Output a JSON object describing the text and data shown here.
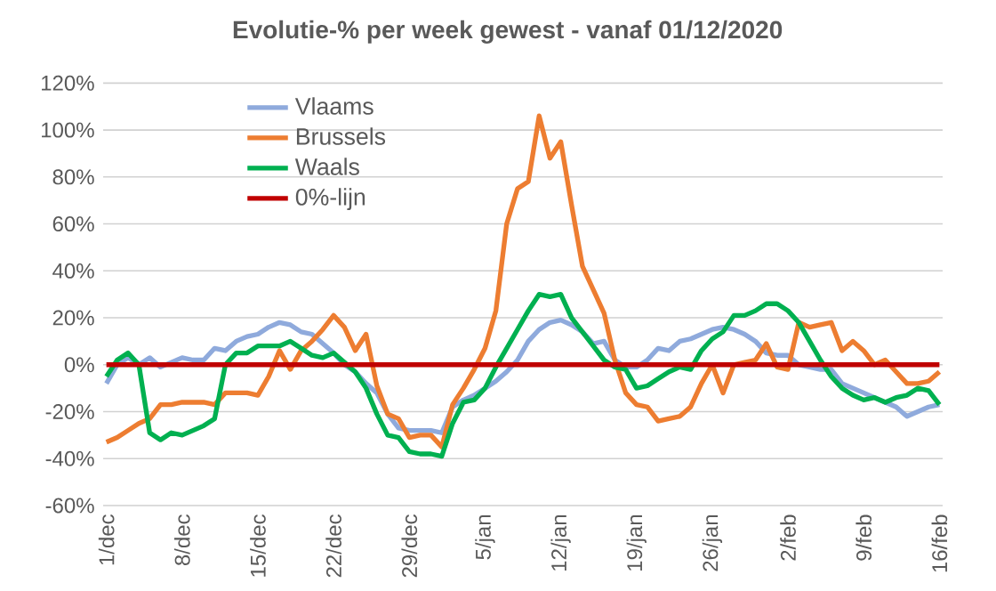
{
  "chart_data": {
    "type": "line",
    "title": "Evolutie-% per week gewest - vanaf 01/12/2020",
    "categories": [
      "1/dec",
      null,
      null,
      null,
      null,
      null,
      null,
      "8/dec",
      null,
      null,
      null,
      null,
      null,
      null,
      "15/dec",
      null,
      null,
      null,
      null,
      null,
      null,
      "22/dec",
      null,
      null,
      null,
      null,
      null,
      null,
      "29/dec",
      null,
      null,
      null,
      null,
      null,
      null,
      "5/jan",
      null,
      null,
      null,
      null,
      null,
      null,
      "12/jan",
      null,
      null,
      null,
      null,
      null,
      null,
      "19/jan",
      null,
      null,
      null,
      null,
      null,
      null,
      "26/jan",
      null,
      null,
      null,
      null,
      null,
      null,
      "2/feb",
      null,
      null,
      null,
      null,
      null,
      null,
      "9/feb",
      null,
      null,
      null,
      null,
      null,
      null,
      "16/feb"
    ],
    "series": [
      {
        "name": "Vlaams",
        "color": "#8faadc",
        "values": [
          -8,
          0,
          3,
          0,
          3,
          -1,
          1,
          3,
          2,
          2,
          7,
          6,
          10,
          12,
          13,
          16,
          18,
          17,
          14,
          13,
          9,
          5,
          0,
          -3,
          -8,
          -12,
          -21,
          -27,
          -28,
          -28,
          -28,
          -29,
          -18,
          -15,
          -13,
          -10,
          -7,
          -3,
          2,
          10,
          15,
          18,
          19,
          17,
          14,
          9,
          10,
          2,
          -1,
          -1,
          2,
          7,
          6,
          10,
          11,
          13,
          15,
          16,
          15,
          13,
          10,
          5,
          4,
          4,
          0,
          -1,
          -2,
          -2,
          -8,
          -10,
          -12,
          -14,
          -16,
          -18,
          -22,
          -20,
          -18,
          -17
        ]
      },
      {
        "name": "Brussels",
        "color": "#ed7d31",
        "values": [
          -33,
          -31,
          -28,
          -25,
          -23,
          -17,
          -17,
          -16,
          -16,
          -16,
          -17,
          -12,
          -12,
          -12,
          -13,
          -5,
          6,
          -2,
          6,
          10,
          15,
          21,
          16,
          6,
          13,
          -9,
          -21,
          -23,
          -31,
          -30,
          -30,
          -35,
          -17,
          -10,
          -2,
          7,
          23,
          60,
          75,
          78,
          106,
          88,
          95,
          68,
          42,
          32,
          22,
          2,
          -12,
          -17,
          -18,
          -24,
          -23,
          -22,
          -18,
          -8,
          0,
          -12,
          0,
          1,
          2,
          9,
          -1,
          -2,
          18,
          16,
          17,
          18,
          6,
          10,
          6,
          0,
          2,
          -3,
          -8,
          -8,
          -7,
          -3
        ]
      },
      {
        "name": "Waals",
        "color": "#00b050",
        "values": [
          -5,
          2,
          5,
          0,
          -29,
          -32,
          -29,
          -30,
          -28,
          -26,
          -23,
          0,
          5,
          5,
          8,
          8,
          8,
          10,
          7,
          4,
          3,
          5,
          1,
          -3,
          -10,
          -21,
          -30,
          -31,
          -37,
          -38,
          -38,
          -39,
          -25,
          -16,
          -15,
          -10,
          -1,
          7,
          15,
          23,
          30,
          29,
          30,
          20,
          14,
          8,
          2,
          -1,
          -2,
          -10,
          -9,
          -6,
          -3,
          -1,
          -2,
          6,
          11,
          14,
          21,
          21,
          23,
          26,
          26,
          23,
          18,
          10,
          2,
          -5,
          -10,
          -13,
          -15,
          -14,
          -16,
          -14,
          -13,
          -10,
          -11,
          -17
        ]
      },
      {
        "name": "0%-lijn",
        "color": "#c00000",
        "values": [
          0,
          0,
          0,
          0,
          0,
          0,
          0,
          0,
          0,
          0,
          0,
          0,
          0,
          0,
          0,
          0,
          0,
          0,
          0,
          0,
          0,
          0,
          0,
          0,
          0,
          0,
          0,
          0,
          0,
          0,
          0,
          0,
          0,
          0,
          0,
          0,
          0,
          0,
          0,
          0,
          0,
          0,
          0,
          0,
          0,
          0,
          0,
          0,
          0,
          0,
          0,
          0,
          0,
          0,
          0,
          0,
          0,
          0,
          0,
          0,
          0,
          0,
          0,
          0,
          0,
          0,
          0,
          0,
          0,
          0,
          0,
          0,
          0,
          0,
          0,
          0,
          0,
          0
        ]
      }
    ],
    "ylim": [
      -60,
      120
    ],
    "yticks": [
      {
        "value": -60,
        "label": "-60%"
      },
      {
        "value": -40,
        "label": "-40%"
      },
      {
        "value": -20,
        "label": "-20%"
      },
      {
        "value": 0,
        "label": "0%"
      },
      {
        "value": 20,
        "label": "20%"
      },
      {
        "value": 40,
        "label": "40%"
      },
      {
        "value": 60,
        "label": "60%"
      },
      {
        "value": 80,
        "label": "80%"
      },
      {
        "value": 100,
        "label": "100%"
      },
      {
        "value": 120,
        "label": "120%"
      }
    ],
    "grid": "y",
    "legend": "top",
    "marker": "none",
    "line_style": "solid"
  }
}
